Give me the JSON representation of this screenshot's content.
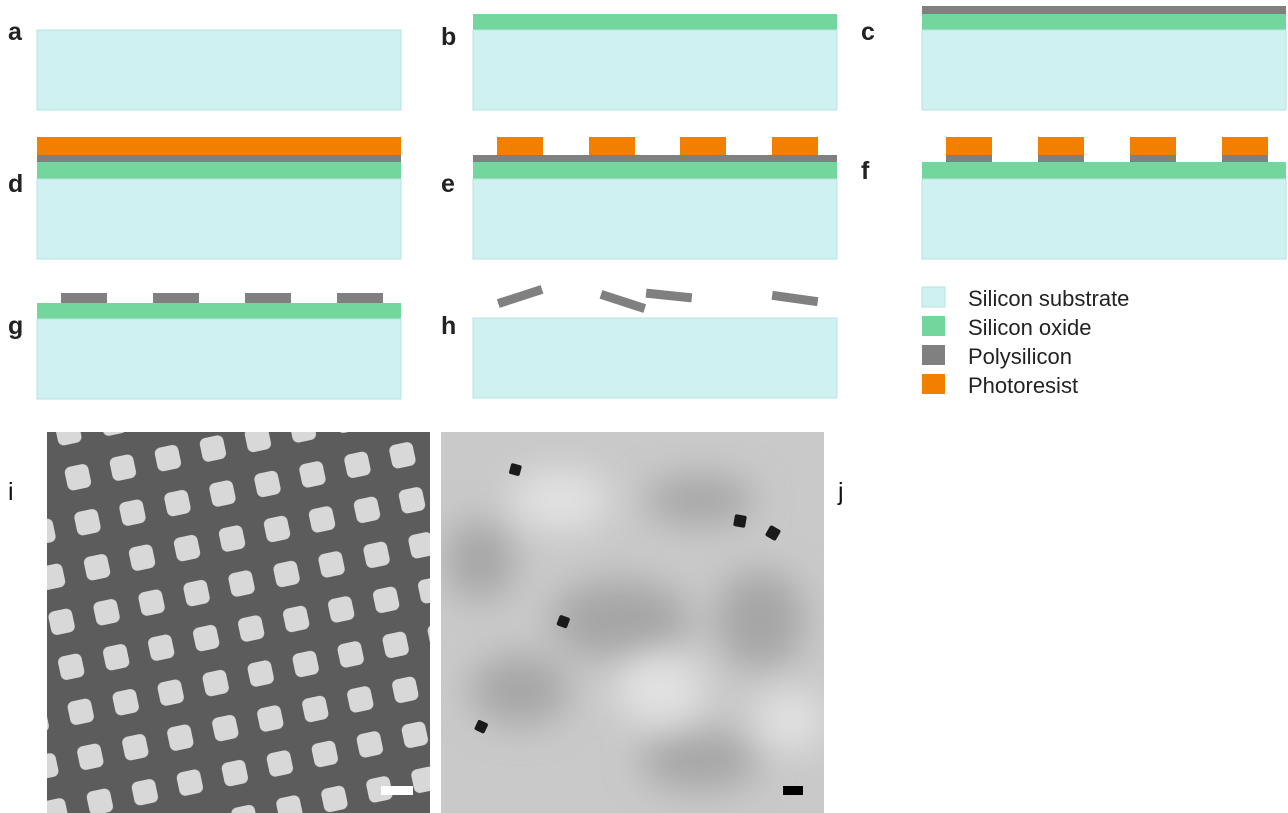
{
  "panels": [
    {
      "label": "a"
    },
    {
      "label": "b"
    },
    {
      "label": "c"
    },
    {
      "label": "d"
    },
    {
      "label": "e"
    },
    {
      "label": "f"
    },
    {
      "label": "g"
    },
    {
      "label": "h"
    },
    {
      "label": "i"
    },
    {
      "label": "j"
    }
  ],
  "legend": [
    {
      "label": "Silicon substrate"
    },
    {
      "label": "Silicon oxide"
    },
    {
      "label": "Polysilicon"
    },
    {
      "label": "Photoresist"
    }
  ]
}
